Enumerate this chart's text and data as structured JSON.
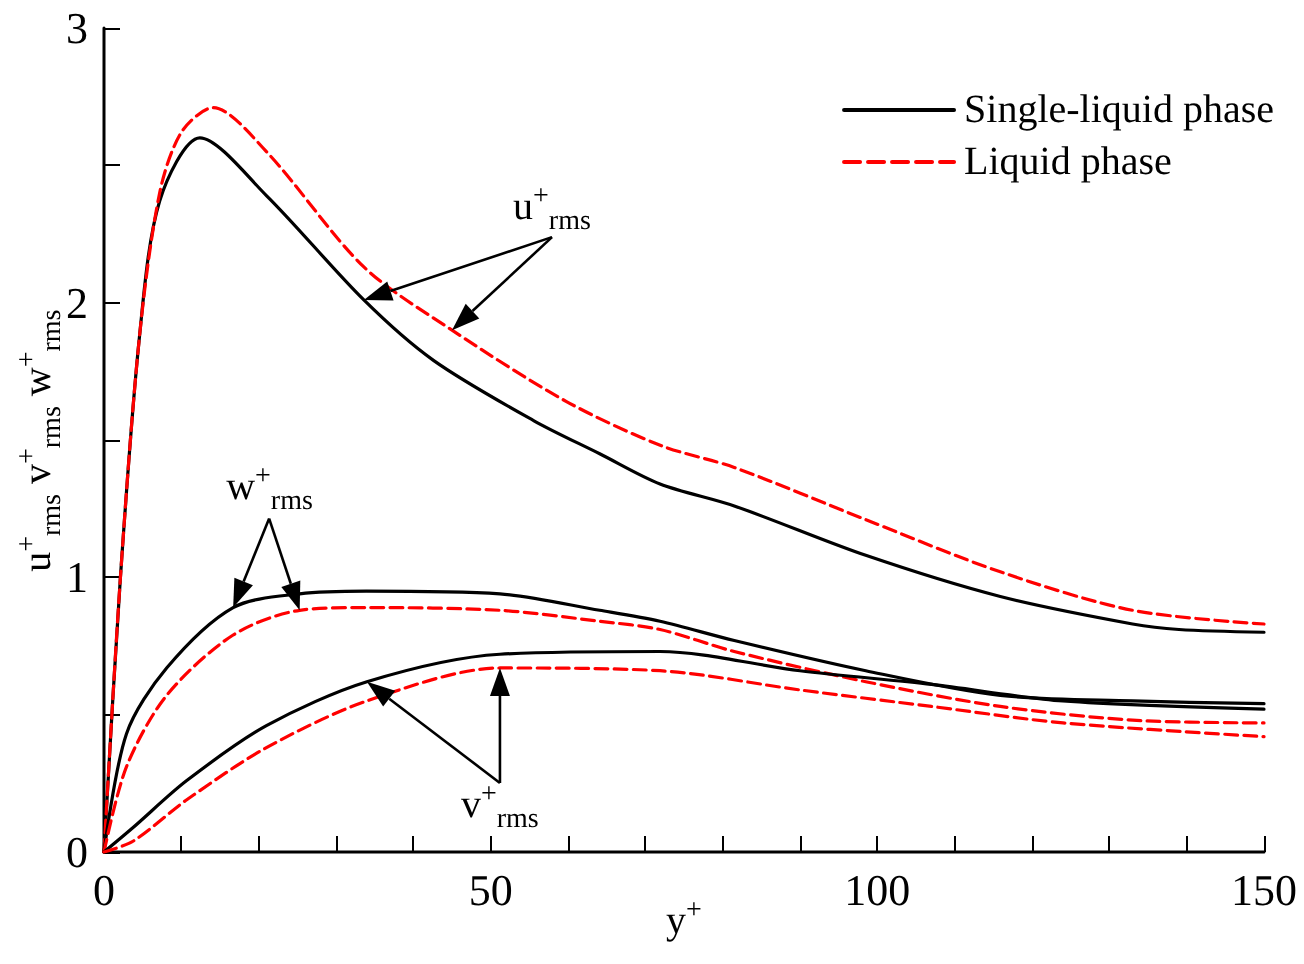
{
  "chart_data": {
    "type": "line",
    "xlabel": "y$^{+}$",
    "ylabel": "u$^{+}$$_{rms}$  v$^{+}$$_{rms}$  w$^{+}$$_{rms}$",
    "xlim": [
      0,
      150
    ],
    "ylim": [
      0,
      3
    ],
    "xticks": [
      0,
      {
        "value": 10,
        "label": null
      },
      {
        "value": 20,
        "label": null
      },
      {
        "value": 30,
        "label": null
      },
      {
        "value": 40,
        "label": null
      },
      50,
      {
        "value": 60,
        "label": null
      },
      {
        "value": 70,
        "label": null
      },
      {
        "value": 80,
        "label": null
      },
      {
        "value": 90,
        "label": null
      },
      100,
      {
        "value": 110,
        "label": null
      },
      {
        "value": 120,
        "label": null
      },
      {
        "value": 130,
        "label": null
      },
      {
        "value": 140,
        "label": null
      },
      150
    ],
    "yticks": [
      0,
      {
        "value": 0.5,
        "label": null
      },
      1,
      {
        "value": 1.5,
        "label": null
      },
      2,
      {
        "value": 2.5,
        "label": null
      },
      3
    ],
    "grid": false,
    "legend": "top right",
    "marker": "none",
    "series": [
      {
        "name": "Single-liquid phase",
        "color": "#000000",
        "line_style": "solid",
        "x": [
          0,
          2.1,
          4.6,
          7.2,
          12.4,
          21,
          33.6,
          42.6,
          55.6,
          64.1,
          71.9,
          81.5,
          98.5,
          115.9,
          133,
          139,
          150
        ],
        "values": [
          0,
          0.99,
          1.88,
          2.37,
          2.6,
          2.39,
          2.01,
          1.79,
          1.57,
          1.45,
          1.34,
          1.26,
          1.08,
          0.93,
          0.83,
          0.81,
          0.8
        ]
      },
      {
        "name": "Liquid phase",
        "color": "#ff0000",
        "line_style": "dashed",
        "x": [
          0,
          2.1,
          4.6,
          7.2,
          10,
          14.1,
          21,
          33.6,
          45,
          59.8,
          72,
          81.5,
          98.5,
          115.9,
          133,
          150
        ],
        "values": [
          0,
          0.99,
          1.88,
          2.4,
          2.62,
          2.71,
          2.55,
          2.13,
          1.9,
          1.64,
          1.48,
          1.4,
          1.21,
          1.02,
          0.88,
          0.83
        ]
      },
      {
        "color": "#000000",
        "line_style": "solid",
        "x": [
          0,
          2.9,
          8.1,
          16.7,
          25.3,
          33.9,
          51.2,
          64.1,
          71.9,
          81.5,
          98.5,
          115.9,
          133,
          150
        ],
        "values": [
          0,
          0.43,
          0.67,
          0.89,
          0.94,
          0.95,
          0.94,
          0.88,
          0.84,
          0.77,
          0.66,
          0.57,
          0.55,
          0.54
        ]
      },
      {
        "color": "#ff0000",
        "line_style": "dashed",
        "x": [
          0,
          2.9,
          8.1,
          16.7,
          25.3,
          33.9,
          51.2,
          64.1,
          71.9,
          81.5,
          98.5,
          115.9,
          133,
          150
        ],
        "values": [
          0,
          0.31,
          0.57,
          0.79,
          0.88,
          0.89,
          0.88,
          0.84,
          0.81,
          0.73,
          0.62,
          0.53,
          0.48,
          0.47
        ]
      },
      {
        "color": "#000000",
        "line_style": "solid",
        "x": [
          0,
          3.8,
          10.7,
          21,
          34,
          51.2,
          71.9,
          90,
          107,
          124,
          150
        ],
        "values": [
          0,
          0.09,
          0.26,
          0.46,
          0.62,
          0.72,
          0.73,
          0.66,
          0.61,
          0.55,
          0.52
        ]
      },
      {
        "color": "#ff0000",
        "line_style": "dashed",
        "x": [
          0,
          3.8,
          10.7,
          21,
          34,
          51.2,
          71.9,
          90,
          107,
          124,
          150
        ],
        "values": [
          0,
          0.04,
          0.19,
          0.38,
          0.55,
          0.67,
          0.66,
          0.59,
          0.53,
          0.47,
          0.42
        ]
      }
    ],
    "annotations": [
      {
        "text": "u$^{+}$$_{rms}$",
        "x": 45,
        "y": 1.9
      },
      {
        "text": "w$^{+}$$_{rms}$",
        "x": 16.7,
        "y": 0.89
      },
      {
        "text": "v$^{+}$$_{rms}$",
        "x": 51.2,
        "y": 0.67
      }
    ]
  }
}
